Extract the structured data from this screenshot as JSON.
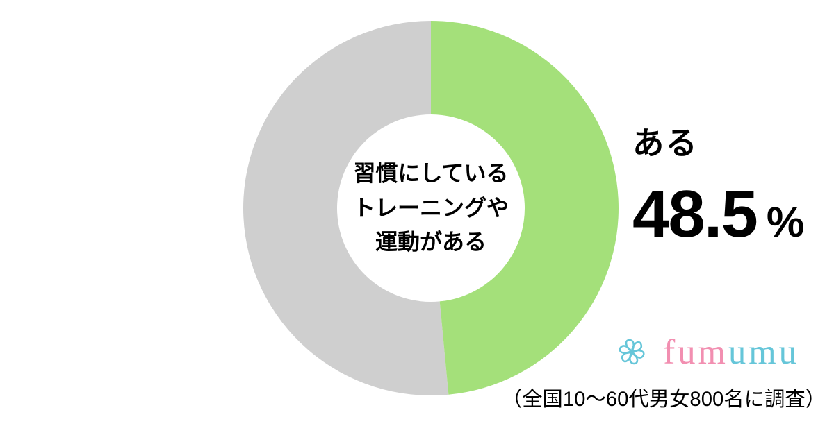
{
  "chart": {
    "type": "donut",
    "value_percent": 48.5,
    "remainder_percent": 51.5,
    "start_angle_deg": 0,
    "outer_radius": 270,
    "inner_radius": 135,
    "colors": {
      "value_slice": "#a4e07a",
      "remainder_slice": "#cfcfcf",
      "background": "#ffffff",
      "text": "#000000"
    },
    "center_label": {
      "line1": "習慣にしている",
      "line2": "トレーニングや",
      "line3": "運動がある",
      "fontsize_pt": 24,
      "font_weight": 700
    }
  },
  "value_display": {
    "label": "ある",
    "label_fontsize_pt": 34,
    "number": "48.5",
    "number_fontsize_pt": 72,
    "unit": "%",
    "unit_fontsize_pt": 46,
    "font_weight": 700
  },
  "logo": {
    "text_part1": "fum",
    "text_part2": "umu",
    "color_part1": "#f28fb1",
    "color_part2": "#66c6d9",
    "mark_color": "#66c6d9",
    "fontsize_pt": 38
  },
  "survey_note": {
    "text": "（全国10〜60代男女800名に調査）",
    "fontsize_pt": 22
  }
}
